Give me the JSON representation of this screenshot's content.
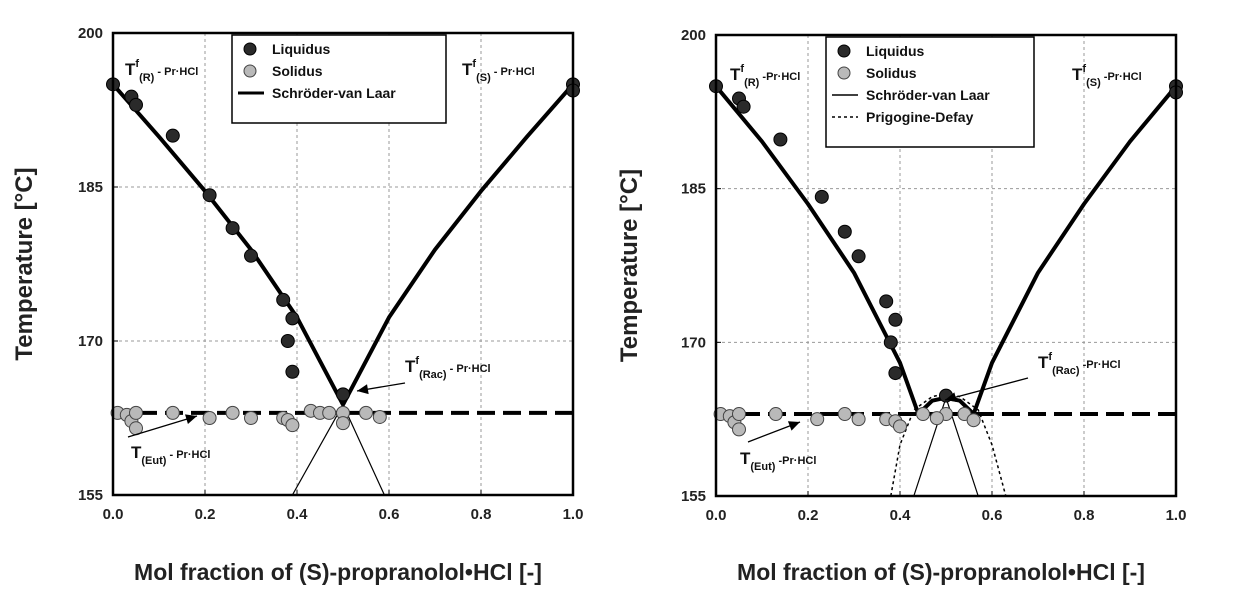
{
  "chart_data": [
    {
      "type": "scatter",
      "xlabel": "Mol fraction of (S)-propranolol•HCl [-]",
      "ylabel": "Temperature [°C]",
      "xlim": [
        0,
        1
      ],
      "ylim": [
        155,
        200
      ],
      "xticks": [
        "0.0",
        "0.2",
        "0.4",
        "0.6",
        "0.8",
        "1.0"
      ],
      "yticks": [
        "155",
        "170",
        "185",
        "200"
      ],
      "grid": true,
      "legend_position": "top-center",
      "legend": [
        "Liquidus",
        "Solidus",
        "Schröder-van Laar"
      ],
      "annotations": {
        "tr": {
          "main": "T",
          "sup": "f",
          "sub": "(R)",
          "tail": "- Pr·HCl"
        },
        "ts": {
          "main": "T",
          "sup": "f",
          "sub": "(S)",
          "tail": "- Pr·HCl"
        },
        "trac": {
          "main": "T",
          "sup": "f",
          "sub": "(Rac)",
          "tail": "- Pr·HCl"
        },
        "teut": {
          "main": "T",
          "sup": "",
          "sub": "(Eut)",
          "tail": "- Pr·HCl"
        }
      },
      "series": [
        {
          "name": "Liquidus",
          "marker": "dark-circle",
          "points": [
            [
              0.0,
              195.0
            ],
            [
              0.04,
              193.8
            ],
            [
              0.05,
              193.0
            ],
            [
              0.13,
              190.0
            ],
            [
              0.21,
              184.2
            ],
            [
              0.26,
              181.0
            ],
            [
              0.3,
              178.3
            ],
            [
              0.37,
              174.0
            ],
            [
              0.39,
              172.2
            ],
            [
              0.38,
              170.0
            ],
            [
              0.39,
              167.0
            ],
            [
              0.5,
              164.8
            ],
            [
              1.0,
              195.0
            ],
            [
              1.0,
              194.4
            ]
          ]
        },
        {
          "name": "Solidus",
          "marker": "grey-circle",
          "points": [
            [
              0.01,
              163.0
            ],
            [
              0.03,
              162.8
            ],
            [
              0.04,
              162.2
            ],
            [
              0.05,
              161.5
            ],
            [
              0.05,
              163.0
            ],
            [
              0.13,
              163.0
            ],
            [
              0.21,
              162.5
            ],
            [
              0.26,
              163.0
            ],
            [
              0.3,
              162.5
            ],
            [
              0.37,
              162.5
            ],
            [
              0.38,
              162.3
            ],
            [
              0.39,
              161.8
            ],
            [
              0.43,
              163.2
            ],
            [
              0.45,
              163.0
            ],
            [
              0.5,
              163.0
            ],
            [
              0.55,
              163.0
            ],
            [
              0.58,
              162.6
            ],
            [
              0.5,
              162.0
            ],
            [
              0.47,
              163.0
            ]
          ]
        },
        {
          "name": "Schröder-van Laar",
          "style": "solid-thick",
          "points": [
            [
              0.0,
              195.0
            ],
            [
              0.1,
              189.9
            ],
            [
              0.2,
              184.6
            ],
            [
              0.3,
              178.9
            ],
            [
              0.4,
              172.3
            ],
            [
              0.5,
              163.8
            ],
            [
              0.6,
              172.3
            ],
            [
              0.7,
              178.9
            ],
            [
              0.8,
              184.6
            ],
            [
              0.9,
              189.9
            ],
            [
              1.0,
              195.0
            ]
          ]
        },
        {
          "name": "Schröder-van Laar extension",
          "style": "solid-thin",
          "points": [
            [
              0.5,
              163.8
            ],
            [
              0.39,
              155.0
            ],
            [
              0.5,
              163.8
            ],
            [
              0.59,
              155.0
            ]
          ]
        },
        {
          "name": "Eutectic",
          "style": "dashed-thick",
          "y": 163.0
        }
      ]
    },
    {
      "type": "scatter",
      "xlabel": "Mol fraction of (S)-propranolol•HCl [-]",
      "ylabel": "Temperature [°C]",
      "xlim": [
        0,
        1
      ],
      "ylim": [
        155,
        200
      ],
      "xticks": [
        "0.0",
        "0.2",
        "0.4",
        "0.6",
        "0.8",
        "1.0"
      ],
      "yticks": [
        "155",
        "170",
        "185",
        "200"
      ],
      "grid": true,
      "legend_position": "top-center",
      "legend": [
        "Liquidus",
        "Solidus",
        "Schröder-van Laar",
        "Prigogine-Defay"
      ],
      "annotations": {
        "tr": {
          "main": "T",
          "sup": "f",
          "sub": "(R)",
          "tail": "-Pr·HCl"
        },
        "ts": {
          "main": "T",
          "sup": "f",
          "sub": "(S)",
          "tail": "-Pr·HCl"
        },
        "trac": {
          "main": "T",
          "sup": "f",
          "sub": "(Rac)",
          "tail": "-Pr·HCl"
        },
        "teut": {
          "main": "T",
          "sup": "",
          "sub": "(Eut)",
          "tail": "-Pr·HCl"
        }
      },
      "series": [
        {
          "name": "Liquidus",
          "marker": "dark-circle",
          "points": [
            [
              0.0,
              195.0
            ],
            [
              0.05,
              193.8
            ],
            [
              0.06,
              193.0
            ],
            [
              0.14,
              189.8
            ],
            [
              0.23,
              184.2
            ],
            [
              0.28,
              180.8
            ],
            [
              0.31,
              178.4
            ],
            [
              0.37,
              174.0
            ],
            [
              0.39,
              172.2
            ],
            [
              0.38,
              170.0
            ],
            [
              0.39,
              167.0
            ],
            [
              0.5,
              164.8
            ],
            [
              1.0,
              195.0
            ],
            [
              1.0,
              194.4
            ]
          ]
        },
        {
          "name": "Solidus",
          "marker": "grey-circle",
          "points": [
            [
              0.01,
              163.0
            ],
            [
              0.03,
              162.8
            ],
            [
              0.04,
              162.2
            ],
            [
              0.05,
              161.5
            ],
            [
              0.05,
              163.0
            ],
            [
              0.13,
              163.0
            ],
            [
              0.22,
              162.5
            ],
            [
              0.28,
              163.0
            ],
            [
              0.31,
              162.5
            ],
            [
              0.37,
              162.5
            ],
            [
              0.39,
              162.3
            ],
            [
              0.4,
              161.8
            ],
            [
              0.45,
              163.0
            ],
            [
              0.5,
              163.0
            ],
            [
              0.54,
              163.0
            ],
            [
              0.56,
              162.4
            ],
            [
              0.48,
              162.6
            ]
          ]
        },
        {
          "name": "Schröder-van Laar",
          "style": "solid-thick",
          "points": [
            [
              0.0,
              195.0
            ],
            [
              0.1,
              189.6
            ],
            [
              0.2,
              183.5
            ],
            [
              0.3,
              176.8
            ],
            [
              0.4,
              168.0
            ],
            [
              0.44,
              163.0
            ],
            [
              0.47,
              164.3
            ],
            [
              0.5,
              164.6
            ],
            [
              0.53,
              164.3
            ],
            [
              0.56,
              163.0
            ],
            [
              0.6,
              168.0
            ],
            [
              0.7,
              176.8
            ],
            [
              0.8,
              183.5
            ],
            [
              0.9,
              189.6
            ],
            [
              1.0,
              195.0
            ]
          ]
        },
        {
          "name": "Schröder-van Laar extension",
          "style": "solid-thin",
          "points": [
            [
              0.5,
              164.6
            ],
            [
              0.43,
              155.0
            ],
            [
              0.5,
              164.6
            ],
            [
              0.57,
              155.0
            ]
          ]
        },
        {
          "name": "Prigogine-Defay",
          "style": "dotted",
          "points": [
            [
              0.38,
              155.0
            ],
            [
              0.4,
              160.0
            ],
            [
              0.43,
              163.4
            ],
            [
              0.47,
              164.7
            ],
            [
              0.5,
              165.0
            ],
            [
              0.53,
              164.7
            ],
            [
              0.57,
              163.4
            ],
            [
              0.6,
              160.0
            ],
            [
              0.63,
              155.0
            ]
          ]
        },
        {
          "name": "Eutectic",
          "style": "dashed-thick",
          "y": 163.0
        }
      ]
    }
  ]
}
